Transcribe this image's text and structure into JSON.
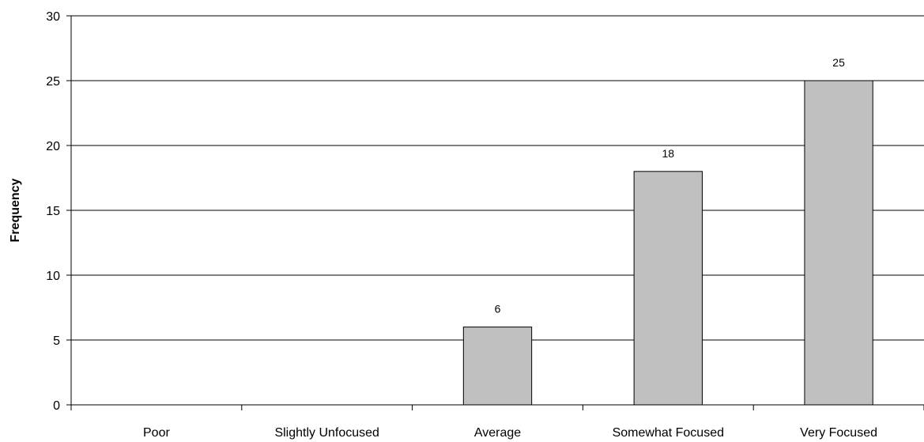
{
  "chart_data": {
    "type": "bar",
    "title": "",
    "xlabel": "",
    "ylabel": "Frequency",
    "categories": [
      "Poor",
      "Slightly Unfocused",
      "Average",
      "Somewhat Focused",
      "Very Focused"
    ],
    "values": [
      0,
      0,
      6,
      18,
      25
    ],
    "data_labels": [
      "",
      "",
      "6",
      "18",
      "25"
    ],
    "ylim": [
      0,
      30
    ],
    "yticks": [
      0,
      5,
      10,
      15,
      20,
      25,
      30
    ],
    "grid": true,
    "legend": "none",
    "bar_color": "#c0c0c0",
    "bar_edge_color": "#000000",
    "grid_color": "#000000"
  }
}
